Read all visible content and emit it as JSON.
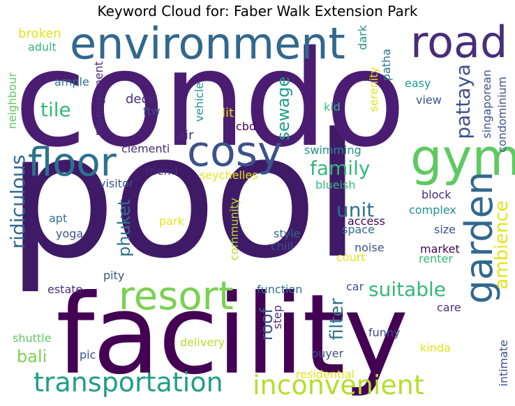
{
  "title": "Keyword Cloud for: Faber Walk Extension Park",
  "colors": {
    "dark_purple": "#440154",
    "indigo": "#3b528b",
    "teal": "#21918c",
    "blue": "#2c728e",
    "green": "#5ec962",
    "light_green": "#7ad151",
    "sea_green": "#35b779",
    "lime": "#b5de2b",
    "yellow": "#e3e418",
    "purple": "#472d7b",
    "navy": "#414487",
    "cyan": "#1f9e89"
  },
  "words": [
    {
      "id": "pool",
      "text": "pool",
      "color": "#3f1a67"
    },
    {
      "id": "condo",
      "text": "condo",
      "color": "#4a1d72"
    },
    {
      "id": "facility",
      "text": "facility",
      "color": "#440154"
    },
    {
      "id": "environment",
      "text": "environment",
      "color": "#31688e"
    },
    {
      "id": "cosy",
      "text": "cosy",
      "color": "#3b528b"
    },
    {
      "id": "road",
      "text": "road",
      "color": "#472d7b"
    },
    {
      "id": "gym",
      "text": "gym",
      "color": "#5ec962"
    },
    {
      "id": "floor",
      "text": "floor",
      "color": "#2c728e"
    },
    {
      "id": "resort",
      "text": "resort",
      "color": "#7ad151"
    },
    {
      "id": "garden",
      "text": "garden",
      "color": "#31688e"
    },
    {
      "id": "transportation",
      "text": "transportation",
      "color": "#1f9e89"
    },
    {
      "id": "inconvenient",
      "text": "inconvenient",
      "color": "#b5de2b"
    },
    {
      "id": "suitable",
      "text": "suitable",
      "color": "#35b779"
    },
    {
      "id": "family",
      "text": "family",
      "color": "#35b779"
    },
    {
      "id": "tile",
      "text": "tile",
      "color": "#35b779"
    },
    {
      "id": "unit",
      "text": "unit",
      "color": "#2c728e"
    },
    {
      "id": "ridiculous",
      "text": "ridiculous",
      "color": "#31688e"
    },
    {
      "id": "pattaya",
      "text": "pattaya",
      "color": "#3b528b"
    },
    {
      "id": "ambience",
      "text": "ambience",
      "color": "#e3e418"
    },
    {
      "id": "sewage",
      "text": "sewage",
      "color": "#1f9e89"
    },
    {
      "id": "phuket",
      "text": "phuket",
      "color": "#2c728e"
    },
    {
      "id": "filter",
      "text": "filter",
      "color": "#2c728e"
    },
    {
      "id": "roof",
      "text": "roof",
      "color": "#3b528b"
    },
    {
      "id": "bali",
      "text": "bali",
      "color": "#7ad151"
    },
    {
      "id": "broken",
      "text": "broken",
      "color": "#e3e418"
    },
    {
      "id": "adult",
      "text": "adult",
      "color": "#35b779"
    },
    {
      "id": "neighbour",
      "text": "neighbour",
      "color": "#5ec962"
    },
    {
      "id": "ample",
      "text": "ample",
      "color": "#2c728e"
    },
    {
      "id": "management",
      "text": "management",
      "color": "#472d7b"
    },
    {
      "id": "vehicle",
      "text": "vehicle",
      "color": "#21918c"
    },
    {
      "id": "deck",
      "text": "deck",
      "color": "#472d7b"
    },
    {
      "id": "ftw",
      "text": "ftw",
      "color": "#3b528b"
    },
    {
      "id": "lit",
      "text": "lit",
      "color": "#e3e418"
    },
    {
      "id": "cbd",
      "text": "cbd",
      "color": "#440154"
    },
    {
      "id": "air",
      "text": "air",
      "color": "#472d7b"
    },
    {
      "id": "clementi",
      "text": "clementi",
      "color": "#472d7b"
    },
    {
      "id": "friend",
      "text": "friend",
      "color": "#472d7b"
    },
    {
      "id": "visitor",
      "text": "visitor",
      "color": "#3b528b"
    },
    {
      "id": "seychelles",
      "text": "seychelles",
      "color": "#e3e418"
    },
    {
      "id": "blueish",
      "text": "blueish",
      "color": "#35b779"
    },
    {
      "id": "swimming",
      "text": "swimming",
      "color": "#21918c"
    },
    {
      "id": "kid",
      "text": "kid",
      "color": "#35b779"
    },
    {
      "id": "serenity",
      "text": "serenity",
      "color": "#e3e418"
    },
    {
      "id": "dark",
      "text": "dark",
      "color": "#21918c"
    },
    {
      "id": "patha",
      "text": "patha",
      "color": "#2c728e"
    },
    {
      "id": "easy",
      "text": "easy",
      "color": "#1f9e89"
    },
    {
      "id": "view",
      "text": "view",
      "color": "#3b528b"
    },
    {
      "id": "singaporean",
      "text": "singaporean",
      "color": "#3b528b"
    },
    {
      "id": "condominium",
      "text": "condominium",
      "color": "#3b528b"
    },
    {
      "id": "block",
      "text": "block",
      "color": "#472d7b"
    },
    {
      "id": "complex",
      "text": "complex",
      "color": "#21918c"
    },
    {
      "id": "size",
      "text": "size",
      "color": "#3b528b"
    },
    {
      "id": "market",
      "text": "market",
      "color": "#440154"
    },
    {
      "id": "renter",
      "text": "renter",
      "color": "#35b779"
    },
    {
      "id": "apt",
      "text": "apt",
      "color": "#2c728e"
    },
    {
      "id": "yoga",
      "text": "yoga",
      "color": "#3b528b"
    },
    {
      "id": "park",
      "text": "park",
      "color": "#e3e418"
    },
    {
      "id": "community",
      "text": "community",
      "color": "#b5de2b"
    },
    {
      "id": "access",
      "text": "access",
      "color": "#440154"
    },
    {
      "id": "space",
      "text": "space",
      "color": "#31688e"
    },
    {
      "id": "style",
      "text": "style",
      "color": "#31688e"
    },
    {
      "id": "chill",
      "text": "chill",
      "color": "#3b528b"
    },
    {
      "id": "noise",
      "text": "noise",
      "color": "#3b528b"
    },
    {
      "id": "court",
      "text": "court",
      "color": "#e3e418"
    },
    {
      "id": "pity",
      "text": "pity",
      "color": "#3b528b"
    },
    {
      "id": "estate",
      "text": "estate",
      "color": "#472d7b"
    },
    {
      "id": "function",
      "text": "function",
      "color": "#2c728e"
    },
    {
      "id": "car",
      "text": "car",
      "color": "#3b528b"
    },
    {
      "id": "care",
      "text": "care",
      "color": "#472d7b"
    },
    {
      "id": "step",
      "text": "step",
      "color": "#472d7b"
    },
    {
      "id": "shuttle",
      "text": "shuttle",
      "color": "#5ec962"
    },
    {
      "id": "delivery",
      "text": "delivery",
      "color": "#b5de2b"
    },
    {
      "id": "funny",
      "text": "funny",
      "color": "#3b528b"
    },
    {
      "id": "pic",
      "text": "pic",
      "color": "#3b528b"
    },
    {
      "id": "buyer",
      "text": "buyer",
      "color": "#3b528b"
    },
    {
      "id": "kinda",
      "text": "kinda",
      "color": "#e3e418"
    },
    {
      "id": "residential",
      "text": "residential",
      "color": "#e3e418"
    },
    {
      "id": "intimate",
      "text": "intimate",
      "color": "#3b528b"
    }
  ]
}
